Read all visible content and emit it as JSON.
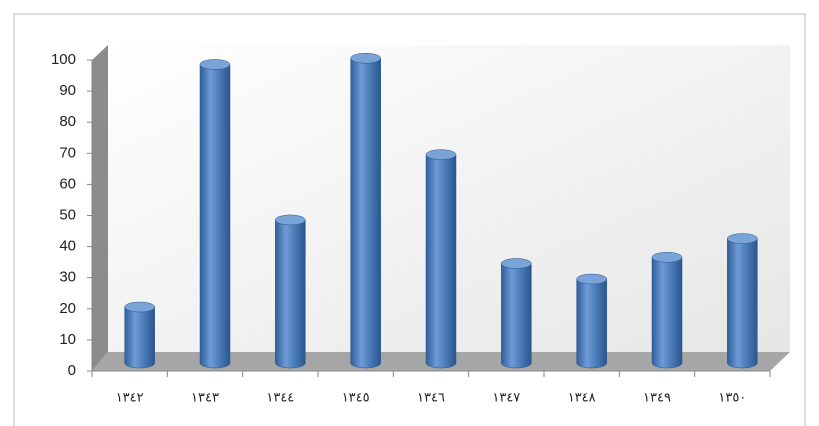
{
  "chart_data": {
    "type": "bar3d",
    "categories": [
      "١٣٤٢",
      "١٣٤٣",
      "١٣٤٤",
      "١٣٤٥",
      "١٣٤٦",
      "١٣٤٧",
      "١٣٤٨",
      "١٣٤٩",
      "١٣٥٠"
    ],
    "values": [
      18,
      96,
      46,
      98,
      67,
      32,
      27,
      34,
      40
    ],
    "color": "#4f81bd",
    "ylim": [
      0,
      100
    ],
    "yticks": [
      0,
      10,
      20,
      30,
      40,
      50,
      60,
      70,
      80,
      90,
      100
    ]
  }
}
